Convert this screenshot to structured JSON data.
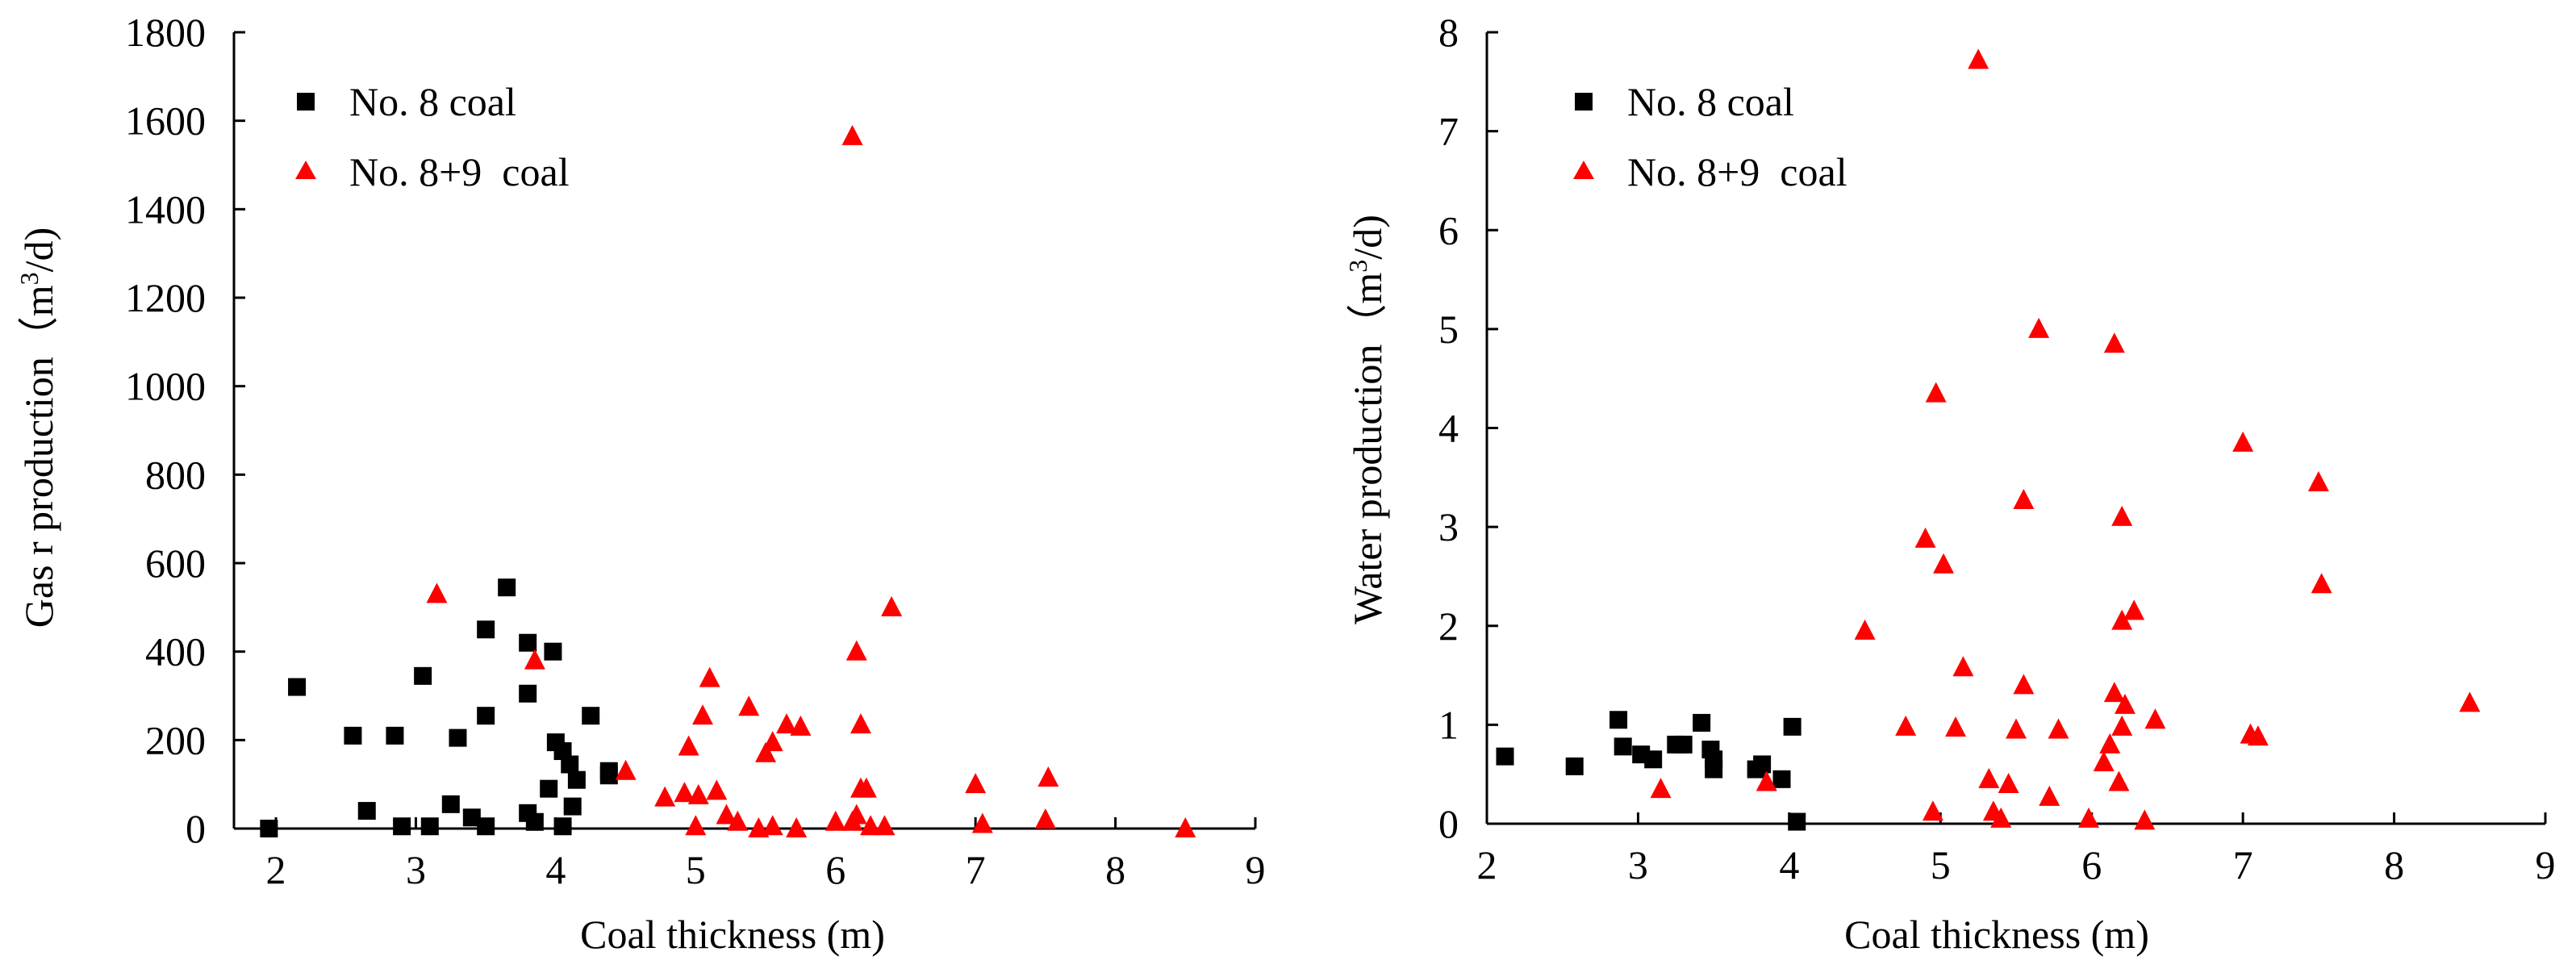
{
  "chart_data": [
    {
      "type": "scatter",
      "xlabel": "Coal  thickness (m)",
      "ylabel_prefix": "Gas r production（m",
      "ylabel_sup": "3",
      "ylabel_suffix": "/d)",
      "xlim": [
        1.7,
        9
      ],
      "ylim": [
        0,
        1800
      ],
      "xticks": [
        2,
        3,
        4,
        5,
        6,
        7,
        8,
        9
      ],
      "yticks": [
        0,
        200,
        400,
        600,
        800,
        1000,
        1200,
        1400,
        1600,
        1800
      ],
      "legend_position": "top-left",
      "series": [
        {
          "name": "No. 8 coal",
          "marker": "square",
          "color": "#000000",
          "points": [
            [
              1.95,
              0
            ],
            [
              2.15,
              320
            ],
            [
              2.55,
              210
            ],
            [
              2.65,
              40
            ],
            [
              2.85,
              210
            ],
            [
              2.9,
              5
            ],
            [
              3.05,
              345
            ],
            [
              3.1,
              5
            ],
            [
              3.25,
              55
            ],
            [
              3.3,
              205
            ],
            [
              3.4,
              25
            ],
            [
              3.5,
              450
            ],
            [
              3.5,
              255
            ],
            [
              3.5,
              5
            ],
            [
              3.65,
              545
            ],
            [
              3.8,
              420
            ],
            [
              3.8,
              305
            ],
            [
              3.8,
              35
            ],
            [
              3.85,
              15
            ],
            [
              3.95,
              90
            ],
            [
              3.98,
              400
            ],
            [
              4.0,
              195
            ],
            [
              4.05,
              175
            ],
            [
              4.05,
              5
            ],
            [
              4.1,
              145
            ],
            [
              4.12,
              50
            ],
            [
              4.15,
              110
            ],
            [
              4.25,
              255
            ],
            [
              4.38,
              130
            ],
            [
              4.38,
              120
            ]
          ]
        },
        {
          "name": "No. 8+9  coal",
          "marker": "triangle",
          "color": "#ff0000",
          "points": [
            [
              3.15,
              530
            ],
            [
              3.85,
              380
            ],
            [
              4.5,
              130
            ],
            [
              4.78,
              70
            ],
            [
              4.92,
              80
            ],
            [
              4.95,
              185
            ],
            [
              5.0,
              5
            ],
            [
              5.02,
              75
            ],
            [
              5.05,
              255
            ],
            [
              5.1,
              340
            ],
            [
              5.15,
              85
            ],
            [
              5.22,
              30
            ],
            [
              5.3,
              15
            ],
            [
              5.38,
              275
            ],
            [
              5.45,
              0
            ],
            [
              5.5,
              170
            ],
            [
              5.55,
              195
            ],
            [
              5.55,
              5
            ],
            [
              5.65,
              235
            ],
            [
              5.72,
              0
            ],
            [
              5.75,
              230
            ],
            [
              6.0,
              15
            ],
            [
              6.12,
              1565
            ],
            [
              6.12,
              15
            ],
            [
              6.15,
              30
            ],
            [
              6.15,
              400
            ],
            [
              6.18,
              90
            ],
            [
              6.18,
              235
            ],
            [
              6.22,
              90
            ],
            [
              6.25,
              5
            ],
            [
              6.35,
              5
            ],
            [
              6.4,
              500
            ],
            [
              7.0,
              100
            ],
            [
              7.05,
              10
            ],
            [
              7.5,
              20
            ],
            [
              7.52,
              115
            ],
            [
              8.5,
              0
            ]
          ]
        }
      ]
    },
    {
      "type": "scatter",
      "xlabel": "Coal  thickness (m)",
      "ylabel_prefix": "Water production（m",
      "ylabel_sup": "3",
      "ylabel_suffix": "/d)",
      "xlim": [
        2,
        9
      ],
      "ylim": [
        0,
        8
      ],
      "xticks": [
        2,
        3,
        4,
        5,
        6,
        7,
        8,
        9
      ],
      "yticks": [
        0,
        1,
        2,
        3,
        4,
        5,
        6,
        7,
        8
      ],
      "legend_position": "top-left",
      "series": [
        {
          "name": "No. 8 coal",
          "marker": "square",
          "color": "#000000",
          "points": [
            [
              2.12,
              0.68
            ],
            [
              2.58,
              0.58
            ],
            [
              2.87,
              1.05
            ],
            [
              2.9,
              0.78
            ],
            [
              3.02,
              0.7
            ],
            [
              3.1,
              0.65
            ],
            [
              3.25,
              0.8
            ],
            [
              3.3,
              0.8
            ],
            [
              3.42,
              1.02
            ],
            [
              3.48,
              0.75
            ],
            [
              3.5,
              0.65
            ],
            [
              3.5,
              0.55
            ],
            [
              3.78,
              0.55
            ],
            [
              3.82,
              0.6
            ],
            [
              3.95,
              0.45
            ],
            [
              4.02,
              0.98
            ],
            [
              4.05,
              0.02
            ]
          ]
        },
        {
          "name": "No. 8+9  coal",
          "marker": "triangle",
          "color": "#ff0000",
          "points": [
            [
              3.15,
              0.35
            ],
            [
              3.85,
              0.42
            ],
            [
              4.5,
              1.95
            ],
            [
              4.77,
              0.98
            ],
            [
              4.9,
              2.88
            ],
            [
              4.95,
              0.12
            ],
            [
              4.97,
              4.35
            ],
            [
              5.02,
              2.62
            ],
            [
              5.1,
              0.97
            ],
            [
              5.15,
              1.58
            ],
            [
              5.25,
              7.72
            ],
            [
              5.32,
              0.45
            ],
            [
              5.35,
              0.12
            ],
            [
              5.4,
              0.05
            ],
            [
              5.45,
              0.4
            ],
            [
              5.5,
              0.95
            ],
            [
              5.55,
              3.27
            ],
            [
              5.55,
              1.4
            ],
            [
              5.65,
              5.0
            ],
            [
              5.72,
              0.27
            ],
            [
              5.78,
              0.95
            ],
            [
              5.98,
              0.05
            ],
            [
              6.08,
              0.62
            ],
            [
              6.12,
              0.8
            ],
            [
              6.15,
              1.32
            ],
            [
              6.15,
              4.85
            ],
            [
              6.18,
              0.42
            ],
            [
              6.2,
              2.05
            ],
            [
              6.2,
              3.1
            ],
            [
              6.2,
              0.98
            ],
            [
              6.22,
              1.2
            ],
            [
              6.28,
              2.15
            ],
            [
              6.35,
              0.03
            ],
            [
              6.42,
              1.05
            ],
            [
              7.0,
              3.85
            ],
            [
              7.05,
              0.9
            ],
            [
              7.1,
              0.88
            ],
            [
              7.5,
              3.45
            ],
            [
              7.52,
              2.42
            ],
            [
              8.5,
              1.22
            ]
          ]
        }
      ]
    }
  ]
}
